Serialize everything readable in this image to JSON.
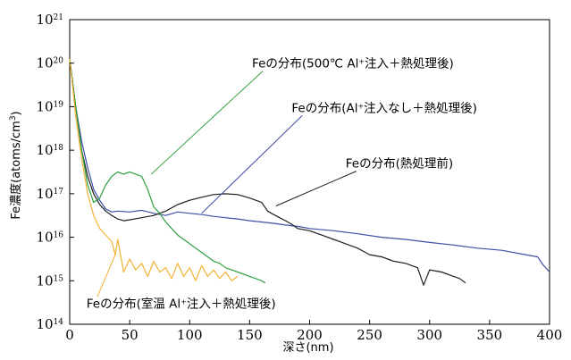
{
  "chart_data": {
    "type": "line",
    "xlabel": "深さ(nm)",
    "ylabel": "Fe濃度(atoms/cm3)",
    "ylabel_parts": {
      "main": "Fe濃度(atoms/cm",
      "sup": "3",
      "close": ")"
    },
    "xlim": [
      0,
      400
    ],
    "ylim_log10": [
      14,
      21
    ],
    "y_scale": "log",
    "grid": false,
    "x_ticks": [
      "0",
      "50",
      "100",
      "150",
      "200",
      "250",
      "300",
      "350",
      "400"
    ],
    "y_ticks": [
      {
        "base": "10",
        "exp": "14"
      },
      {
        "base": "10",
        "exp": "15"
      },
      {
        "base": "10",
        "exp": "16"
      },
      {
        "base": "10",
        "exp": "17"
      },
      {
        "base": "10",
        "exp": "18"
      },
      {
        "base": "10",
        "exp": "19"
      },
      {
        "base": "10",
        "exp": "20"
      },
      {
        "base": "10",
        "exp": "21"
      }
    ],
    "series": [
      {
        "color": "#3d4fa8",
        "x": [
          0,
          5,
          10,
          15,
          20,
          25,
          30,
          35,
          40,
          50,
          60,
          70,
          80,
          90,
          100,
          110,
          120,
          130,
          140,
          150,
          160,
          170,
          180,
          190,
          200,
          220,
          240,
          260,
          280,
          300,
          320,
          340,
          360,
          380,
          390,
          395,
          400
        ],
        "y_log10": [
          20.1,
          19.0,
          18.2,
          17.6,
          17.1,
          16.85,
          16.65,
          16.58,
          16.6,
          16.58,
          16.62,
          16.55,
          16.5,
          16.58,
          16.55,
          16.52,
          16.48,
          16.45,
          16.42,
          16.38,
          16.35,
          16.32,
          16.28,
          16.25,
          16.2,
          16.15,
          16.08,
          16.0,
          15.95,
          15.88,
          15.82,
          15.75,
          15.7,
          15.6,
          15.55,
          15.35,
          15.2
        ]
      },
      {
        "color": "#1f1f1f",
        "x": [
          0,
          5,
          10,
          15,
          20,
          25,
          30,
          35,
          40,
          45,
          50,
          60,
          70,
          80,
          90,
          100,
          110,
          120,
          130,
          140,
          150,
          160,
          165,
          170,
          175,
          180,
          185,
          190,
          200,
          210,
          220,
          230,
          240,
          250,
          260,
          270,
          280,
          290,
          295,
          300,
          310,
          320,
          325,
          330
        ],
        "y_log10": [
          20.1,
          19.0,
          18.0,
          17.4,
          17.0,
          16.75,
          16.6,
          16.5,
          16.42,
          16.38,
          16.4,
          16.45,
          16.5,
          16.6,
          16.75,
          16.85,
          16.92,
          16.98,
          17.0,
          16.98,
          16.9,
          16.8,
          16.6,
          16.52,
          16.45,
          16.38,
          16.3,
          16.2,
          16.15,
          16.05,
          15.95,
          15.85,
          15.75,
          15.6,
          15.55,
          15.45,
          15.4,
          15.3,
          14.9,
          15.25,
          15.2,
          15.1,
          15.05,
          14.95
        ]
      },
      {
        "color": "#2ea043",
        "x": [
          0,
          5,
          10,
          15,
          20,
          25,
          30,
          35,
          40,
          45,
          50,
          55,
          60,
          65,
          70,
          75,
          80,
          85,
          90,
          95,
          100,
          105,
          110,
          115,
          120,
          125,
          130,
          135,
          140,
          145,
          150,
          155,
          160,
          163
        ],
        "y_log10": [
          20.1,
          19.0,
          18.0,
          17.2,
          16.8,
          16.9,
          17.2,
          17.4,
          17.5,
          17.45,
          17.5,
          17.45,
          17.4,
          17.1,
          16.7,
          16.55,
          16.35,
          16.2,
          16.05,
          15.95,
          15.85,
          15.75,
          15.65,
          15.55,
          15.45,
          15.4,
          15.3,
          15.25,
          15.2,
          15.15,
          15.1,
          15.05,
          15.0,
          14.95
        ]
      },
      {
        "color": "#f2b233",
        "x": [
          0,
          5,
          10,
          15,
          20,
          25,
          30,
          35,
          38,
          40,
          45,
          50,
          55,
          60,
          65,
          70,
          75,
          80,
          85,
          90,
          95,
          100,
          105,
          110,
          115,
          120,
          125,
          130,
          135,
          140
        ],
        "y_log10": [
          20.1,
          18.8,
          17.8,
          17.0,
          16.5,
          16.2,
          16.05,
          15.9,
          15.6,
          15.95,
          15.2,
          15.5,
          15.25,
          15.4,
          15.1,
          15.45,
          15.2,
          15.3,
          15.05,
          15.4,
          15.1,
          15.3,
          15.0,
          15.35,
          15.1,
          15.25,
          15.05,
          15.2,
          15.0,
          15.1
        ]
      }
    ],
    "annotations": [
      {
        "prefix": "Feの分布(500℃ Al",
        "sup": "+",
        "suffix": "注入＋熱処理後)",
        "color": "#2ea043",
        "target_x": 68,
        "target_y_log10": 17.45,
        "at_x": 152,
        "at_y_log10": 19.9
      },
      {
        "prefix": "Feの分布(Al",
        "sup": "+",
        "suffix": "注入なし＋熱処理後)",
        "color": "#3d4fa8",
        "target_x": 110,
        "target_y_log10": 16.55,
        "at_x": 185,
        "at_y_log10": 18.88
      },
      {
        "prefix": "Feの分布(熱処理前)",
        "sup": "",
        "suffix": "",
        "color": "#1f1f1f",
        "target_x": 172,
        "target_y_log10": 16.72,
        "at_x": 230,
        "at_y_log10": 17.6
      },
      {
        "prefix": "Feの分布(室温 Al",
        "sup": "+",
        "suffix": "注入＋熱処理後)",
        "color": "#f2b233",
        "target_x": 38,
        "target_y_log10": 15.6,
        "at_x": 14,
        "at_y_log10": 14.38
      }
    ]
  }
}
